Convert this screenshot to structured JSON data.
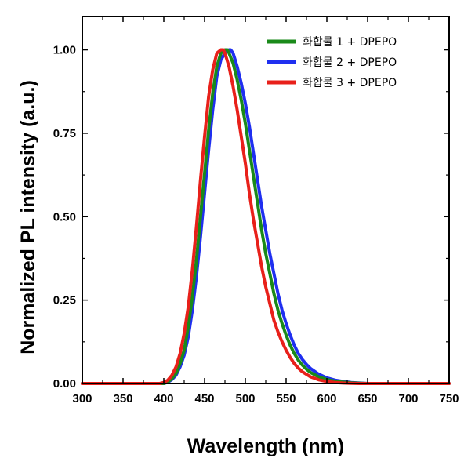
{
  "chart_data": {
    "type": "line",
    "title": "",
    "xlabel": "Wavelength (nm)",
    "ylabel": "Normalized PL intensity (a.u.)",
    "xlim": [
      300,
      750
    ],
    "ylim": [
      0,
      1.1
    ],
    "xticks": [
      "300",
      "350",
      "400",
      "450",
      "500",
      "550",
      "600",
      "650",
      "700",
      "750"
    ],
    "yticks": [
      "0.00",
      "0.25",
      "0.50",
      "0.75",
      "1.00"
    ],
    "legend_position": "top-right",
    "grid": false,
    "series": [
      {
        "name": "화합물 1 + DPEPO",
        "color": "#1a8a1a",
        "x": [
          300,
          400,
          405,
          410,
          415,
          420,
          425,
          430,
          435,
          440,
          445,
          450,
          455,
          460,
          465,
          470,
          475,
          478,
          480,
          485,
          490,
          495,
          500,
          505,
          510,
          515,
          520,
          525,
          530,
          535,
          540,
          545,
          550,
          555,
          560,
          565,
          570,
          575,
          580,
          590,
          600,
          610,
          620,
          630,
          640,
          650,
          660,
          750
        ],
        "y": [
          0.0,
          0.0,
          0.005,
          0.015,
          0.03,
          0.06,
          0.1,
          0.17,
          0.26,
          0.37,
          0.5,
          0.63,
          0.76,
          0.87,
          0.95,
          0.99,
          1.0,
          1.0,
          0.99,
          0.96,
          0.91,
          0.85,
          0.78,
          0.7,
          0.62,
          0.54,
          0.46,
          0.39,
          0.33,
          0.27,
          0.22,
          0.18,
          0.145,
          0.115,
          0.09,
          0.07,
          0.055,
          0.043,
          0.033,
          0.02,
          0.012,
          0.007,
          0.004,
          0.002,
          0.001,
          0.0,
          0.0,
          0.0
        ]
      },
      {
        "name": "화합물 2 + DPEPO",
        "color": "#1f2ff0",
        "x": [
          300,
          400,
          405,
          410,
          415,
          420,
          425,
          430,
          435,
          440,
          445,
          450,
          455,
          460,
          465,
          470,
          475,
          480,
          482,
          485,
          490,
          495,
          500,
          505,
          510,
          515,
          520,
          525,
          530,
          535,
          540,
          545,
          550,
          555,
          560,
          565,
          570,
          575,
          580,
          590,
          600,
          610,
          620,
          630,
          640,
          650,
          660,
          750
        ],
        "y": [
          0.0,
          0.0,
          0.004,
          0.012,
          0.025,
          0.05,
          0.085,
          0.14,
          0.22,
          0.32,
          0.44,
          0.57,
          0.7,
          0.82,
          0.92,
          0.97,
          0.99,
          1.0,
          1.0,
          0.99,
          0.95,
          0.9,
          0.84,
          0.77,
          0.69,
          0.61,
          0.53,
          0.46,
          0.39,
          0.33,
          0.27,
          0.22,
          0.18,
          0.145,
          0.115,
          0.09,
          0.072,
          0.057,
          0.045,
          0.028,
          0.017,
          0.01,
          0.006,
          0.003,
          0.0015,
          0.0,
          0.0,
          0.0
        ]
      },
      {
        "name": "화합물 3 + DPEPO",
        "color": "#e8201a",
        "x": [
          300,
          395,
          400,
          405,
          410,
          415,
          420,
          425,
          430,
          435,
          440,
          445,
          450,
          455,
          460,
          465,
          470,
          473,
          475,
          480,
          485,
          490,
          495,
          500,
          505,
          510,
          515,
          520,
          525,
          530,
          535,
          540,
          545,
          550,
          555,
          560,
          565,
          570,
          580,
          590,
          600,
          610,
          620,
          630,
          640,
          750
        ],
        "y": [
          0.0,
          0.0,
          0.003,
          0.01,
          0.025,
          0.05,
          0.09,
          0.15,
          0.23,
          0.34,
          0.47,
          0.61,
          0.74,
          0.86,
          0.94,
          0.99,
          1.0,
          1.0,
          0.99,
          0.95,
          0.89,
          0.82,
          0.74,
          0.66,
          0.57,
          0.49,
          0.42,
          0.35,
          0.29,
          0.24,
          0.19,
          0.155,
          0.125,
          0.1,
          0.078,
          0.06,
          0.046,
          0.035,
          0.02,
          0.011,
          0.006,
          0.003,
          0.0015,
          0.0005,
          0.0,
          0.0
        ]
      }
    ]
  }
}
